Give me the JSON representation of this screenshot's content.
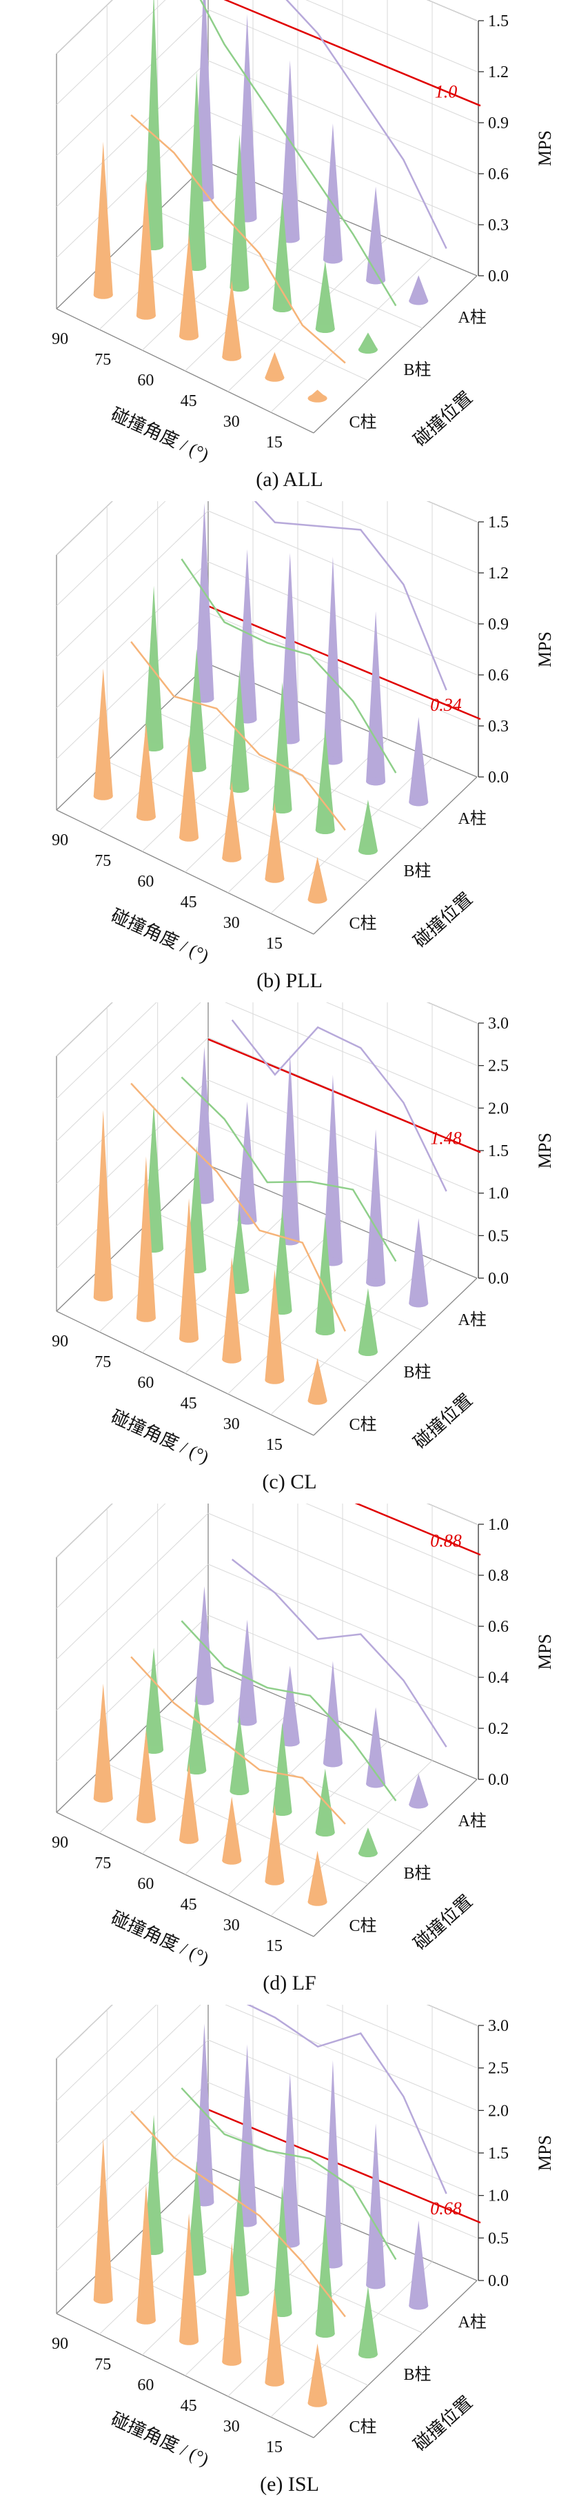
{
  "colors": {
    "A": "#b7a9da",
    "B": "#8fcf8a",
    "C": "#f6b479",
    "threshold": "#e00000"
  },
  "chart_data": [
    {
      "type": "3d-cone",
      "caption": "(a)  ALL",
      "zlabel": "MPS",
      "zticks": [
        "0.0",
        "0.3",
        "0.6",
        "0.9",
        "1.2",
        "1.5"
      ],
      "zlim": [
        0,
        1.5
      ],
      "xlabel": "碰撞角度 / (°)",
      "xticks": [
        "90",
        "75",
        "60",
        "45",
        "30",
        "15"
      ],
      "ylabel": "碰撞位置",
      "yticks": [
        "A柱",
        "B柱",
        "C柱"
      ],
      "threshold": 1.0,
      "threshold_label": "1.0",
      "series": [
        {
          "name": "A柱",
          "values": [
            1.35,
            1.2,
            1.05,
            0.8,
            0.55,
            0.15
          ]
        },
        {
          "name": "B柱",
          "values": [
            1.5,
            1.15,
            0.9,
            0.65,
            0.4,
            0.1
          ]
        },
        {
          "name": "C柱",
          "values": [
            0.9,
            0.8,
            0.6,
            0.45,
            0.15,
            0.05
          ]
        }
      ]
    },
    {
      "type": "3d-cone",
      "caption": "(b)  PLL",
      "zlabel": "MPS",
      "zticks": [
        "0.0",
        "0.3",
        "0.6",
        "0.9",
        "1.2",
        "1.5"
      ],
      "zlim": [
        0,
        1.5
      ],
      "xlabel": "碰撞角度 / (°)",
      "xticks": [
        "90",
        "75",
        "60",
        "45",
        "30",
        "15"
      ],
      "ylabel": "碰撞位置",
      "yticks": [
        "A柱",
        "B柱",
        "C柱"
      ],
      "threshold": 0.34,
      "threshold_label": "0.34",
      "series": [
        {
          "name": "A柱",
          "values": [
            1.15,
            1.0,
            1.1,
            1.2,
            1.0,
            0.5
          ]
        },
        {
          "name": "B柱",
          "values": [
            0.95,
            0.7,
            0.7,
            0.75,
            0.6,
            0.3
          ]
        },
        {
          "name": "C柱",
          "values": [
            0.75,
            0.55,
            0.6,
            0.45,
            0.45,
            0.25
          ]
        }
      ]
    },
    {
      "type": "3d-cone",
      "caption": "(c)  CL",
      "zlabel": "MPS",
      "zticks": [
        "0.0",
        "0.5",
        "1.0",
        "1.5",
        "2.0",
        "2.5",
        "3.0"
      ],
      "zlim": [
        0,
        3.0
      ],
      "xlabel": "碰撞角度 / (°)",
      "xticks": [
        "90",
        "75",
        "60",
        "45",
        "30",
        "15"
      ],
      "ylabel": "碰撞位置",
      "yticks": [
        "A柱",
        "B柱",
        "C柱"
      ],
      "threshold": 1.48,
      "threshold_label": "1.48",
      "series": [
        {
          "name": "A柱",
          "values": [
            1.8,
            1.4,
            2.2,
            2.2,
            1.8,
            1.0
          ]
        },
        {
          "name": "B柱",
          "values": [
            1.7,
            1.45,
            0.95,
            1.2,
            1.35,
            0.75
          ]
        },
        {
          "name": "C柱",
          "values": [
            2.2,
            1.9,
            1.65,
            1.2,
            1.3,
            0.5
          ]
        }
      ]
    },
    {
      "type": "3d-cone",
      "caption": "(d)  LF",
      "zlabel": "MPS",
      "zticks": [
        "0.0",
        "0.2",
        "0.4",
        "0.6",
        "0.8",
        "1.0"
      ],
      "zlim": [
        0,
        1.0
      ],
      "xlabel": "碰撞角度 / (°)",
      "xticks": [
        "90",
        "75",
        "60",
        "45",
        "30",
        "15"
      ],
      "ylabel": "碰撞位置",
      "yticks": [
        "A柱",
        "B柱",
        "C柱"
      ],
      "threshold": 0.88,
      "threshold_label": "0.88",
      "series": [
        {
          "name": "A柱",
          "values": [
            0.45,
            0.4,
            0.3,
            0.4,
            0.3,
            0.12
          ]
        },
        {
          "name": "B柱",
          "values": [
            0.4,
            0.3,
            0.3,
            0.35,
            0.25,
            0.1
          ]
        },
        {
          "name": "C柱",
          "values": [
            0.45,
            0.35,
            0.3,
            0.25,
            0.3,
            0.2
          ]
        }
      ]
    },
    {
      "type": "3d-cone",
      "caption": "(e)  ISL",
      "zlabel": "MPS",
      "zticks": [
        "0.0",
        "0.5",
        "1.0",
        "1.5",
        "2.0",
        "2.5",
        "3.0"
      ],
      "zlim": [
        0,
        3.0
      ],
      "xlabel": "碰撞角度 / (°)",
      "xticks": [
        "90",
        "75",
        "60",
        "45",
        "30",
        "15"
      ],
      "ylabel": "碰撞位置",
      "yticks": [
        "A柱",
        "B柱",
        "C柱"
      ],
      "threshold": 0.68,
      "threshold_label": "0.68",
      "series": [
        {
          "name": "A柱",
          "values": [
            2.1,
            2.1,
            2.0,
            2.4,
            1.9,
            1.0
          ]
        },
        {
          "name": "B柱",
          "values": [
            1.6,
            1.3,
            1.35,
            1.5,
            1.4,
            0.8
          ]
        },
        {
          "name": "C柱",
          "values": [
            1.9,
            1.6,
            1.5,
            1.4,
            1.1,
            0.7
          ]
        }
      ]
    }
  ]
}
